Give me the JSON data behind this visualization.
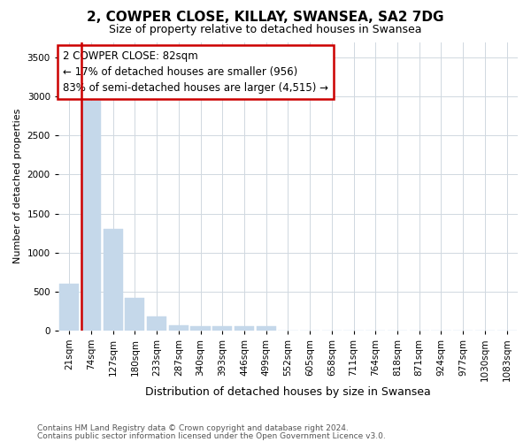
{
  "title": "2, COWPER CLOSE, KILLAY, SWANSEA, SA2 7DG",
  "subtitle": "Size of property relative to detached houses in Swansea",
  "xlabel": "Distribution of detached houses by size in Swansea",
  "ylabel": "Number of detached properties",
  "footnote1": "Contains HM Land Registry data © Crown copyright and database right 2024.",
  "footnote2": "Contains public sector information licensed under the Open Government Licence v3.0.",
  "annotation_title": "2 COWPER CLOSE: 82sqm",
  "annotation_line2": "← 17% of detached houses are smaller (956)",
  "annotation_line3": "83% of semi-detached houses are larger (4,515) →",
  "categories": [
    "21sqm",
    "74sqm",
    "127sqm",
    "180sqm",
    "233sqm",
    "287sqm",
    "340sqm",
    "393sqm",
    "446sqm",
    "499sqm",
    "552sqm",
    "605sqm",
    "658sqm",
    "711sqm",
    "764sqm",
    "818sqm",
    "871sqm",
    "924sqm",
    "977sqm",
    "1030sqm",
    "1083sqm"
  ],
  "values": [
    600,
    2950,
    1300,
    420,
    175,
    70,
    50,
    50,
    50,
    50,
    0,
    0,
    0,
    0,
    0,
    0,
    0,
    0,
    0,
    0,
    0
  ],
  "bar_color": "#c5d8ea",
  "marker_line_color": "#cc0000",
  "annotation_box_edgecolor": "#cc0000",
  "annotation_box_facecolor": "#ffffff",
  "ylim": [
    0,
    3700
  ],
  "yticks": [
    0,
    500,
    1000,
    1500,
    2000,
    2500,
    3000,
    3500
  ],
  "bg_color": "#ffffff",
  "grid_color": "#d0d8e0",
  "title_fontsize": 11,
  "subtitle_fontsize": 9,
  "ylabel_fontsize": 8,
  "xlabel_fontsize": 9,
  "footnote_fontsize": 6.5,
  "tick_fontsize": 7.5
}
